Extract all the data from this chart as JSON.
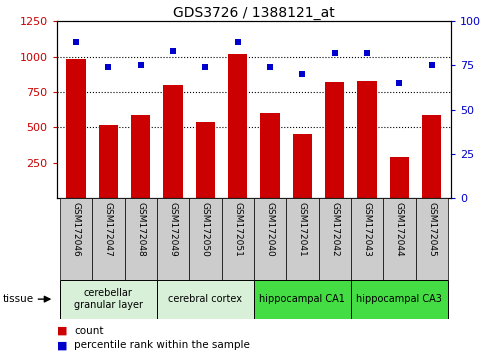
{
  "title": "GDS3726 / 1388121_at",
  "samples": [
    "GSM172046",
    "GSM172047",
    "GSM172048",
    "GSM172049",
    "GSM172050",
    "GSM172051",
    "GSM172040",
    "GSM172041",
    "GSM172042",
    "GSM172043",
    "GSM172044",
    "GSM172045"
  ],
  "counts": [
    980,
    520,
    590,
    800,
    540,
    1020,
    600,
    455,
    820,
    830,
    290,
    590
  ],
  "percentiles": [
    88,
    74,
    75,
    83,
    74,
    88,
    74,
    70,
    82,
    82,
    65,
    75
  ],
  "ylim_left": [
    0,
    1250
  ],
  "ylim_right": [
    0,
    100
  ],
  "yticks_left": [
    250,
    500,
    750,
    1000,
    1250
  ],
  "yticks_right": [
    0,
    25,
    50,
    75,
    100
  ],
  "bar_color": "#cc0000",
  "dot_color": "#0000cc",
  "tissue_groups": [
    {
      "label": "cerebellar\ngranular layer",
      "start": 0,
      "end": 3,
      "color": "#d8f0d8"
    },
    {
      "label": "cerebral cortex",
      "start": 3,
      "end": 6,
      "color": "#d8f0d8"
    },
    {
      "label": "hippocampal CA1",
      "start": 6,
      "end": 9,
      "color": "#44dd44"
    },
    {
      "label": "hippocampal CA3",
      "start": 9,
      "end": 12,
      "color": "#44dd44"
    }
  ],
  "legend_count_color": "#cc0000",
  "legend_dot_color": "#0000cc",
  "label_box_color": "#cccccc",
  "grid_color": "black"
}
